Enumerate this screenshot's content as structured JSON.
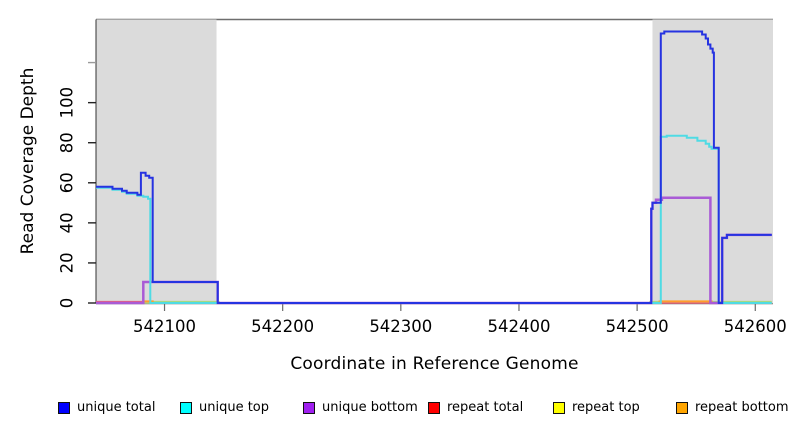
{
  "chart_data": {
    "type": "line",
    "title": "",
    "xlabel": "Coordinate in Reference Genome",
    "ylabel": "Read Coverage Depth",
    "xlim": [
      542042,
      542615
    ],
    "ylim": [
      0,
      141.5
    ],
    "xticks": [
      542100,
      542200,
      542300,
      542400,
      542500,
      542600
    ],
    "yticks": [
      {
        "value": 0,
        "label": "0"
      },
      {
        "value": 20,
        "label": "20"
      },
      {
        "value": 40,
        "label": "40"
      },
      {
        "value": 60,
        "label": "60"
      },
      {
        "value": 80,
        "label": "80"
      },
      {
        "value": 100,
        "label": "100"
      },
      {
        "value": 120,
        "label": ""
      }
    ],
    "grid": false,
    "background": "#ffffff",
    "shade_color": "#dbdbdb",
    "frame_color": "#6e6e6e",
    "axis_color": "#333333",
    "tick_color": "#6a6a6a",
    "shaded_regions": [
      {
        "x0": 542042,
        "x1": 542144
      },
      {
        "x0": 542513,
        "x1": 542615
      }
    ],
    "series": [
      {
        "name": "repeat-total",
        "legend_label": "repeat total",
        "legend_color": "#FF0000",
        "line_color": "#e8607a",
        "width": 1.5,
        "points": [
          [
            542042,
            0.7
          ],
          [
            542082,
            0.7
          ],
          [
            542082,
            0
          ],
          [
            542614,
            0
          ]
        ]
      },
      {
        "name": "repeat-top",
        "legend_label": "repeat top",
        "legend_color": "#FFFF00",
        "line_color": "#a6d883",
        "width": 1.5,
        "points": [
          [
            542042,
            0
          ],
          [
            542088,
            0
          ],
          [
            542088,
            0.7
          ],
          [
            542146,
            0.7
          ],
          [
            542146,
            0
          ],
          [
            542511,
            0
          ],
          [
            542511,
            0.7
          ],
          [
            542614,
            0.7
          ]
        ]
      },
      {
        "name": "repeat-bottom",
        "legend_label": "repeat bottom",
        "legend_color": "#FFA500",
        "line_color": "#ff9d2e",
        "width": 2,
        "points": [
          [
            542042,
            0
          ],
          [
            542082,
            0
          ],
          [
            542082,
            0.8
          ],
          [
            542090,
            0.8
          ],
          [
            542090,
            0
          ],
          [
            542519,
            0
          ],
          [
            542519,
            0.8
          ],
          [
            542563,
            0.8
          ],
          [
            542563,
            0
          ],
          [
            542614,
            0
          ]
        ]
      },
      {
        "name": "unique-bottom",
        "legend_label": "unique bottom",
        "legend_color": "#A020F0",
        "line_color": "#a95bd6",
        "width": 2.5,
        "points": [
          [
            542042,
            0
          ],
          [
            542082,
            0
          ],
          [
            542082,
            10.5
          ],
          [
            542145,
            10.5
          ],
          [
            542145,
            0
          ],
          [
            542512,
            0
          ],
          [
            542512,
            47
          ],
          [
            542513,
            47
          ],
          [
            542513,
            50
          ],
          [
            542516,
            50
          ],
          [
            542516,
            51.5
          ],
          [
            542521,
            51.5
          ],
          [
            542521,
            52.5
          ],
          [
            542562,
            52.5
          ],
          [
            542562,
            0
          ],
          [
            542572,
            0
          ],
          [
            542572,
            32.5
          ],
          [
            542576,
            32.5
          ],
          [
            542576,
            34
          ],
          [
            542614,
            34
          ]
        ]
      },
      {
        "name": "unique-top",
        "legend_label": "unique top",
        "legend_color": "#00FFFF",
        "line_color": "#4fdbe4",
        "width": 2,
        "points": [
          [
            542042,
            57.5
          ],
          [
            542056,
            57.5
          ],
          [
            542056,
            56.5
          ],
          [
            542064,
            56.5
          ],
          [
            542064,
            55.5
          ],
          [
            542068,
            55.5
          ],
          [
            542068,
            54.5
          ],
          [
            542077,
            54.5
          ],
          [
            542077,
            53.5
          ],
          [
            542082,
            53.5
          ],
          [
            542082,
            53
          ],
          [
            542086,
            53
          ],
          [
            542086,
            52
          ],
          [
            542088,
            52
          ],
          [
            542088,
            0
          ],
          [
            542520,
            0
          ],
          [
            542520,
            83
          ],
          [
            542525,
            83
          ],
          [
            542525,
            83.5
          ],
          [
            542542,
            83.5
          ],
          [
            542542,
            82.5
          ],
          [
            542551,
            82.5
          ],
          [
            542551,
            81
          ],
          [
            542558,
            81
          ],
          [
            542558,
            79.5
          ],
          [
            542561,
            79.5
          ],
          [
            542561,
            78
          ],
          [
            542563,
            78
          ],
          [
            542563,
            77
          ],
          [
            542569,
            77
          ],
          [
            542569,
            0
          ],
          [
            542614,
            0
          ]
        ]
      },
      {
        "name": "unique-total",
        "legend_label": "unique total",
        "legend_color": "#0000FF",
        "line_color": "#2633e1",
        "width": 2,
        "points": [
          [
            542042,
            58
          ],
          [
            542056,
            58
          ],
          [
            542056,
            57
          ],
          [
            542064,
            57
          ],
          [
            542064,
            56
          ],
          [
            542068,
            56
          ],
          [
            542068,
            55
          ],
          [
            542077,
            55
          ],
          [
            542077,
            54
          ],
          [
            542080,
            54
          ],
          [
            542080,
            65
          ],
          [
            542084,
            65
          ],
          [
            542084,
            63.5
          ],
          [
            542087,
            63.5
          ],
          [
            542087,
            62.5
          ],
          [
            542090,
            62.5
          ],
          [
            542090,
            10.5
          ],
          [
            542145,
            10.5
          ],
          [
            542145,
            0
          ],
          [
            542512,
            0
          ],
          [
            542512,
            47
          ],
          [
            542513,
            47
          ],
          [
            542513,
            50
          ],
          [
            542520,
            50
          ],
          [
            542520,
            134.5
          ],
          [
            542523,
            134.5
          ],
          [
            542523,
            135.5
          ],
          [
            542555,
            135.5
          ],
          [
            542555,
            134
          ],
          [
            542558,
            134
          ],
          [
            542558,
            132
          ],
          [
            542560,
            132
          ],
          [
            542560,
            129
          ],
          [
            542562,
            129
          ],
          [
            542562,
            127
          ],
          [
            542564,
            127
          ],
          [
            542564,
            125
          ],
          [
            542565,
            125
          ],
          [
            542565,
            77.5
          ],
          [
            542569,
            77.5
          ],
          [
            542569,
            0
          ],
          [
            542572,
            0
          ],
          [
            542572,
            32.5
          ],
          [
            542576,
            32.5
          ],
          [
            542576,
            34
          ],
          [
            542614,
            34
          ]
        ]
      }
    ],
    "legend": {
      "position": "bottom",
      "items": [
        {
          "label": "unique total",
          "color": "#0000FF"
        },
        {
          "label": "unique top",
          "color": "#00FFFF"
        },
        {
          "label": "unique bottom",
          "color": "#A020F0"
        },
        {
          "label": "repeat total",
          "color": "#FF0000"
        },
        {
          "label": "repeat top",
          "color": "#FFFF00"
        },
        {
          "label": "repeat bottom",
          "color": "#FFA500"
        }
      ]
    }
  }
}
